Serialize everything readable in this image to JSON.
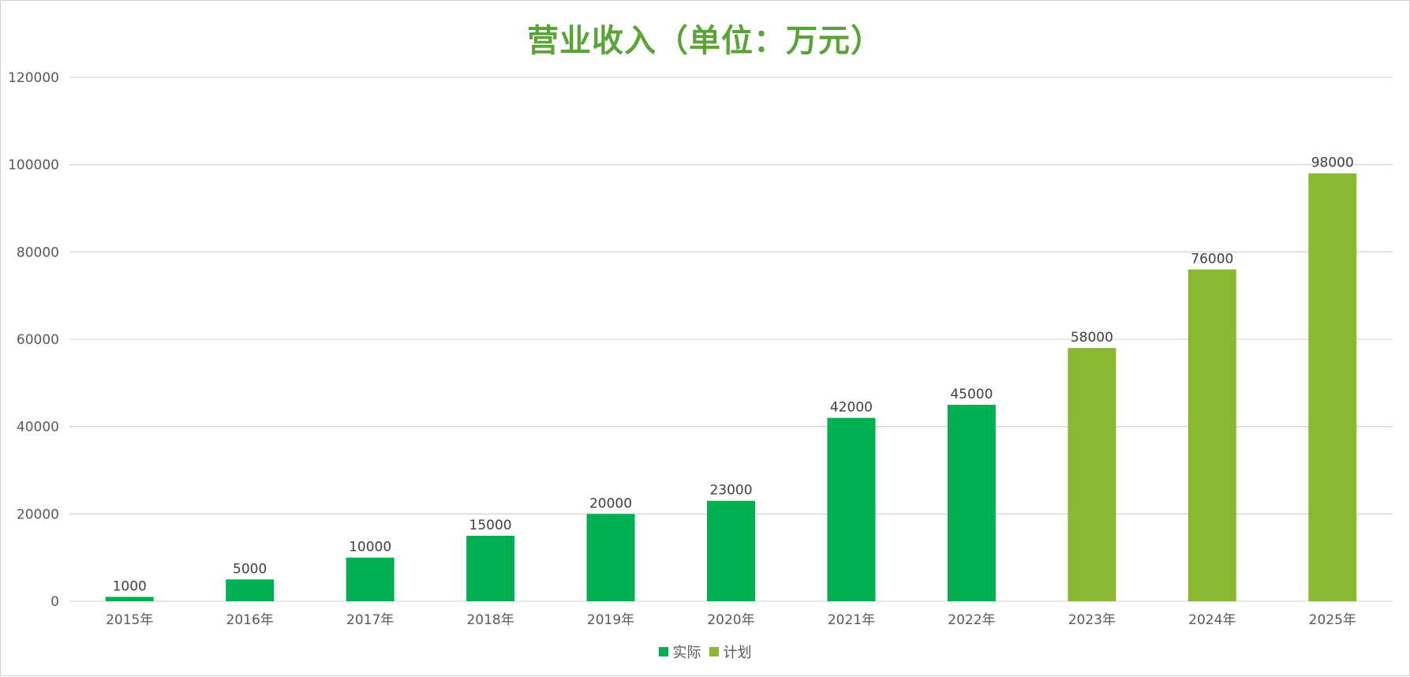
{
  "colors": {
    "actual": "#00b050",
    "plan": "#8ab833",
    "title": "#5aa336",
    "grid": "#d9d9d9"
  },
  "chart_data": {
    "type": "bar",
    "title": "营业收入（单位：万元）",
    "categories": [
      "2015年",
      "2016年",
      "2017年",
      "2018年",
      "2019年",
      "2020年",
      "2021年",
      "2022年",
      "2023年",
      "2024年",
      "2025年"
    ],
    "values": [
      1000,
      5000,
      10000,
      15000,
      20000,
      23000,
      42000,
      45000,
      58000,
      76000,
      98000
    ],
    "series_of_point": [
      "实际",
      "实际",
      "实际",
      "实际",
      "实际",
      "实际",
      "实际",
      "实际",
      "计划",
      "计划",
      "计划"
    ],
    "series": [
      {
        "name": "实际",
        "color": "#00b050"
      },
      {
        "name": "计划",
        "color": "#8ab833"
      }
    ],
    "xlabel": "",
    "ylabel": "",
    "ylim": [
      0,
      120000
    ],
    "yticks": [
      0,
      20000,
      40000,
      60000,
      80000,
      100000,
      120000
    ],
    "grid": true,
    "legend_position": "bottom",
    "data_labels": true
  }
}
